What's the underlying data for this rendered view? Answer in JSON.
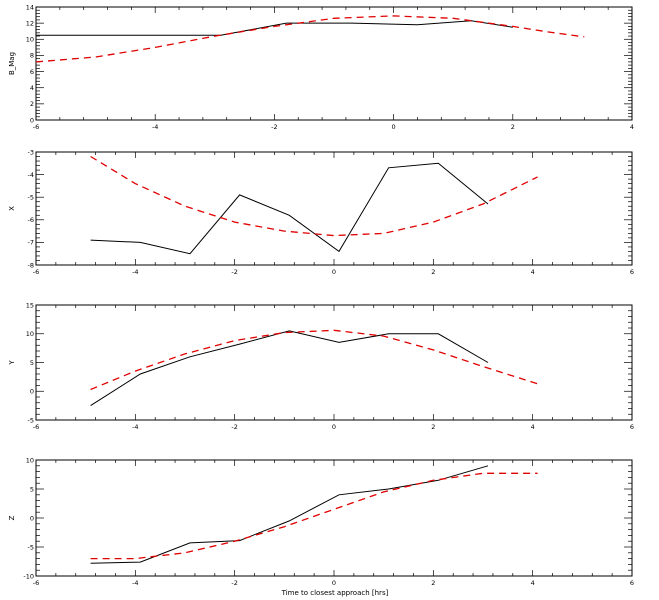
{
  "xlabel": "Time to closest approach [hrs]",
  "colors": {
    "observed": "#000000",
    "model": "#e00000"
  },
  "chart_data": [
    {
      "type": "line",
      "ylabel": "B_Mag",
      "xlim": [
        -6,
        4
      ],
      "ylim": [
        0,
        14
      ],
      "xticks": [
        -6,
        -4,
        -2,
        0,
        2,
        4
      ],
      "yticks": [
        0,
        2,
        4,
        6,
        8,
        10,
        12,
        14
      ],
      "grid": false,
      "series": [
        {
          "style": "solid",
          "color": "#000000",
          "x": [
            -6.0,
            -2.9,
            -1.8,
            -0.7,
            0.4,
            1.3,
            2.0
          ],
          "y": [
            10.5,
            10.5,
            12.0,
            12.0,
            11.8,
            12.3,
            11.5
          ]
        },
        {
          "style": "dashed",
          "color": "#e00000",
          "x": [
            -6.0,
            -5.0,
            -4.0,
            -3.0,
            -2.0,
            -1.0,
            0.0,
            1.0,
            2.0,
            2.6,
            3.2
          ],
          "y": [
            7.2,
            7.8,
            9.0,
            10.4,
            11.6,
            12.6,
            12.9,
            12.6,
            11.6,
            10.9,
            10.3
          ]
        }
      ]
    },
    {
      "type": "line",
      "ylabel": "X",
      "xlim": [
        -6,
        6
      ],
      "ylim": [
        -8,
        -3
      ],
      "xticks": [
        -6,
        -4,
        -2,
        0,
        2,
        4,
        6
      ],
      "yticks": [
        -8,
        -7,
        -6,
        -5,
        -4,
        -3
      ],
      "grid": false,
      "series": [
        {
          "style": "solid",
          "color": "#000000",
          "x": [
            -4.9,
            -3.9,
            -2.9,
            -1.9,
            -0.9,
            0.1,
            1.1,
            2.1,
            3.1
          ],
          "y": [
            -6.9,
            -7.0,
            -7.5,
            -4.9,
            -5.8,
            -7.4,
            -3.7,
            -3.5,
            -5.3
          ]
        },
        {
          "style": "dashed",
          "color": "#e00000",
          "x": [
            -4.9,
            -4.0,
            -3.0,
            -2.0,
            -1.0,
            0.0,
            1.0,
            2.0,
            3.0,
            4.1
          ],
          "y": [
            -3.2,
            -4.4,
            -5.4,
            -6.1,
            -6.5,
            -6.7,
            -6.6,
            -6.1,
            -5.3,
            -4.1
          ]
        }
      ]
    },
    {
      "type": "line",
      "ylabel": "Y",
      "xlim": [
        -6,
        6
      ],
      "ylim": [
        -5,
        15
      ],
      "xticks": [
        -6,
        -4,
        -2,
        0,
        2,
        4,
        6
      ],
      "yticks": [
        -5,
        0,
        5,
        10,
        15
      ],
      "grid": false,
      "series": [
        {
          "style": "solid",
          "color": "#000000",
          "x": [
            -4.9,
            -3.9,
            -2.9,
            -1.9,
            -0.9,
            0.1,
            1.1,
            2.1,
            3.1
          ],
          "y": [
            -2.5,
            3.0,
            6.0,
            8.2,
            10.5,
            8.5,
            10.0,
            10.0,
            5.0
          ]
        },
        {
          "style": "dashed",
          "color": "#e00000",
          "x": [
            -4.9,
            -4.0,
            -3.0,
            -2.0,
            -1.0,
            0.0,
            1.0,
            2.0,
            3.0,
            4.1
          ],
          "y": [
            0.3,
            3.5,
            6.5,
            8.8,
            10.2,
            10.6,
            9.6,
            7.2,
            4.3,
            1.3
          ]
        }
      ]
    },
    {
      "type": "line",
      "ylabel": "Z",
      "xlim": [
        -6,
        6
      ],
      "ylim": [
        -10,
        10
      ],
      "xticks": [
        -6,
        -4,
        -2,
        0,
        2,
        4,
        6
      ],
      "yticks": [
        -10,
        -5,
        0,
        5,
        10
      ],
      "grid": false,
      "series": [
        {
          "style": "solid",
          "color": "#000000",
          "x": [
            -4.9,
            -3.9,
            -2.9,
            -1.9,
            -0.9,
            0.1,
            1.1,
            2.1,
            3.1
          ],
          "y": [
            -7.8,
            -7.6,
            -4.3,
            -3.9,
            -0.5,
            4.0,
            5.0,
            6.5,
            9.0
          ]
        },
        {
          "style": "dashed",
          "color": "#e00000",
          "x": [
            -4.9,
            -4.0,
            -3.0,
            -2.0,
            -1.0,
            0.0,
            1.0,
            2.0,
            3.0,
            4.1
          ],
          "y": [
            -7.0,
            -7.0,
            -6.0,
            -4.0,
            -1.5,
            1.5,
            4.5,
            6.5,
            7.7,
            7.7
          ]
        }
      ]
    }
  ]
}
